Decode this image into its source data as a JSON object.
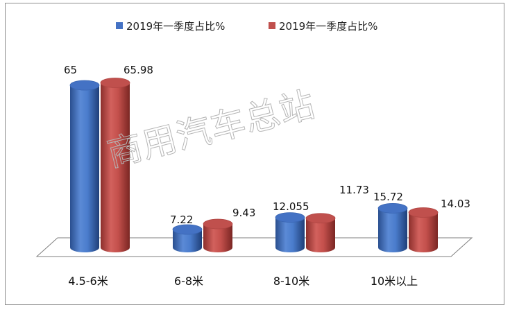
{
  "watermark": "商用汽车总站",
  "chart_data": {
    "type": "bar",
    "categories": [
      "4.5-6米",
      "6-8米",
      "8-10米",
      "10米以上"
    ],
    "series": [
      {
        "name": "2019年一季度占比%",
        "color": "#4472c4",
        "values": [
          65,
          7.22,
          12.055,
          15.72
        ],
        "labels": [
          "65",
          "7.22",
          "12.055",
          "15.72"
        ]
      },
      {
        "name": "2019年一季度占比%",
        "color": "#c0504d",
        "values": [
          65.98,
          9.43,
          11.73,
          14.03
        ],
        "labels": [
          "65.98",
          "9.43",
          "11.73",
          "14.03"
        ]
      }
    ],
    "title": "",
    "xlabel": "",
    "ylabel": "",
    "ylim": [
      0,
      70
    ],
    "legend": "top-center",
    "grid": false
  }
}
